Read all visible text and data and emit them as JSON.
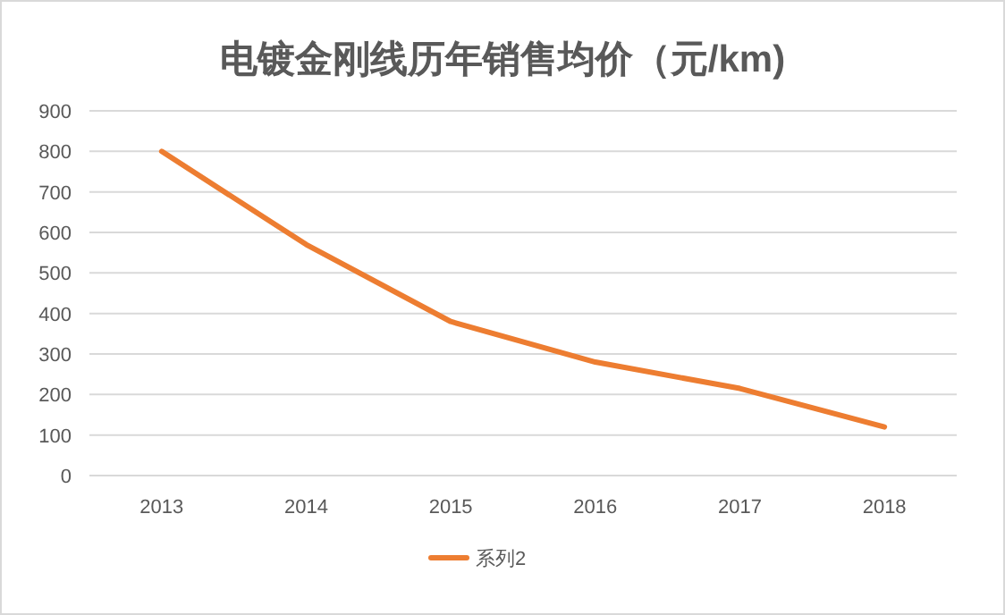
{
  "chart_data": {
    "type": "line",
    "title": "电镀金刚线历年销售均价（元/km)",
    "categories": [
      "2013",
      "2014",
      "2015",
      "2016",
      "2017",
      "2018"
    ],
    "series": [
      {
        "name": "系列2",
        "color": "#ed7d31",
        "values": [
          800,
          570,
          380,
          280,
          215,
          120
        ]
      }
    ],
    "ylim": [
      0,
      900
    ],
    "yticks": [
      0,
      100,
      200,
      300,
      400,
      500,
      600,
      700,
      800,
      900
    ],
    "grid": "y",
    "legend": "bottom",
    "marker": "none",
    "line_style": "solid"
  }
}
